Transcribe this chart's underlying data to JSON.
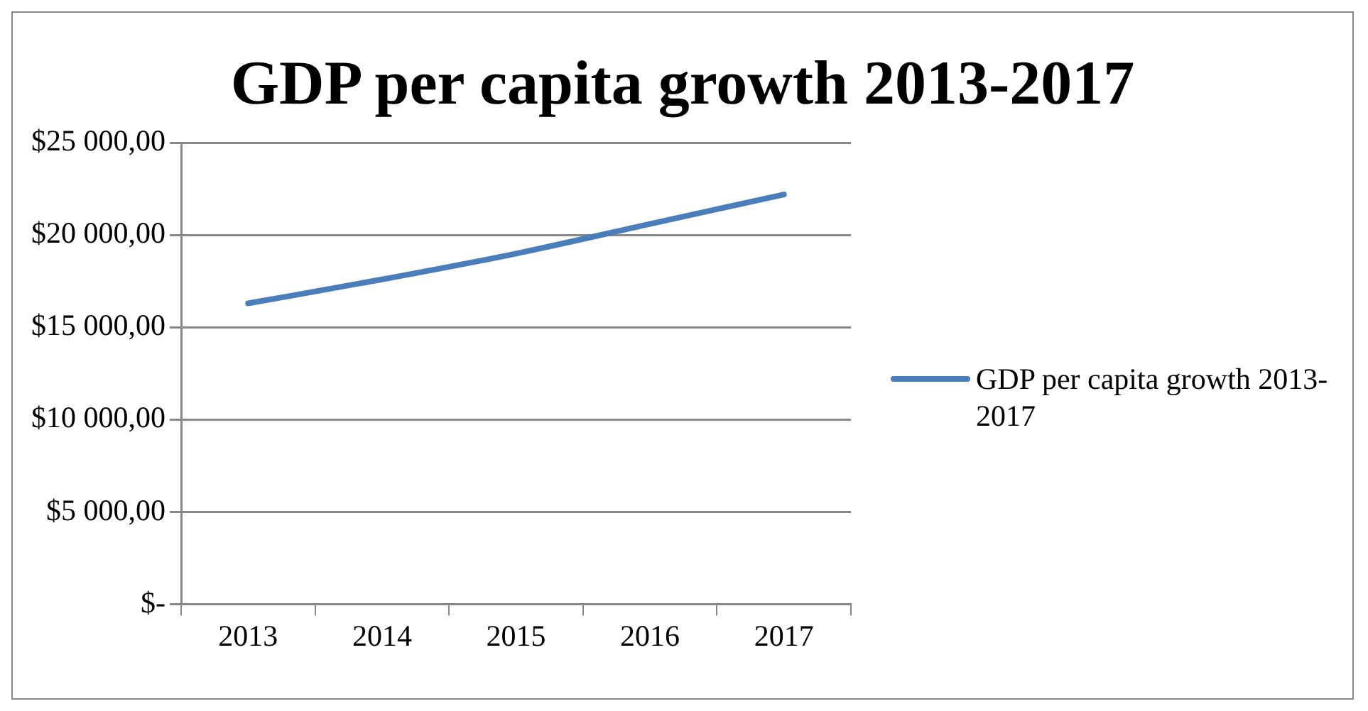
{
  "chart_data": {
    "type": "line",
    "title": "GDP per capita growth 2013-2017",
    "categories": [
      "2013",
      "2014",
      "2015",
      "2016",
      "2017"
    ],
    "series": [
      {
        "name": "GDP per capita growth 2013-2017",
        "color": "#4a7ebb",
        "values": [
          16300,
          17600,
          19000,
          20600,
          22200
        ]
      }
    ],
    "ylim": [
      0,
      25000
    ],
    "yticks": [
      {
        "value": 0,
        "label": "$-"
      },
      {
        "value": 5000,
        "label": "$5 000,00"
      },
      {
        "value": 10000,
        "label": "$10 000,00"
      },
      {
        "value": 15000,
        "label": "$15 000,00"
      },
      {
        "value": 20000,
        "label": "$20 000,00"
      },
      {
        "value": 25000,
        "label": "$25 000,00"
      }
    ],
    "grid": "y",
    "legend": "right",
    "marker": "none",
    "line_style": "solid"
  }
}
